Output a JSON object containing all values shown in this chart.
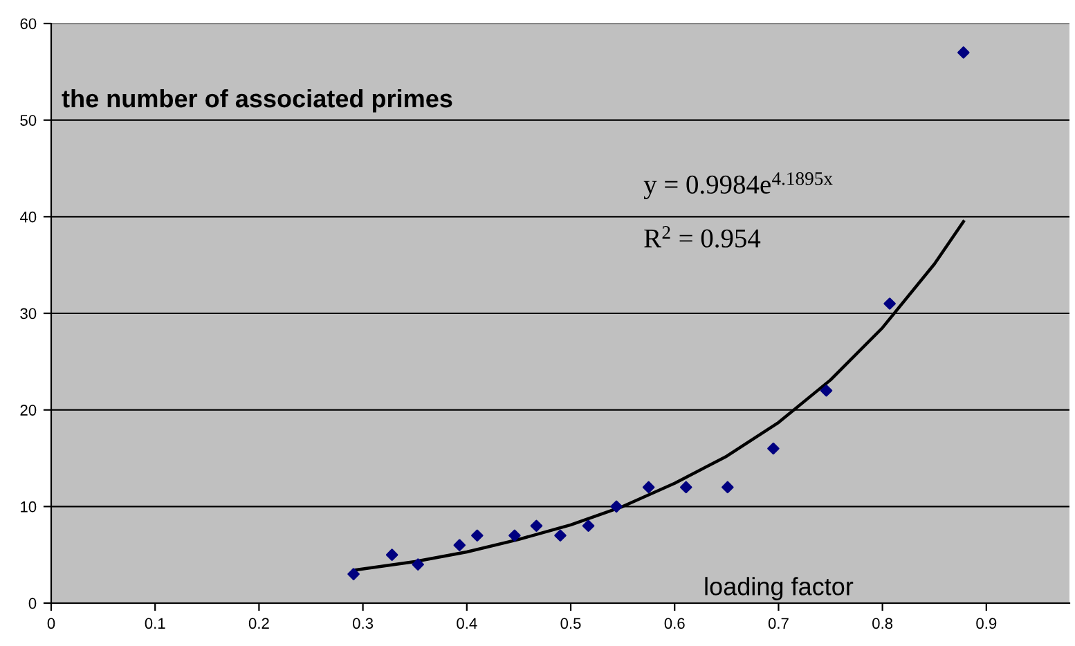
{
  "chart_data": {
    "type": "scatter",
    "xlabel": "loading factor",
    "ylabel": "the number of associated primes",
    "annotations": [
      "y = 0.9984e$^{4.1895x}$",
      "R$^{2}$ = 0.954"
    ],
    "series": [
      {
        "color": "#000080",
        "marker": "diamond",
        "x": [
          0.291,
          0.328,
          0.353,
          0.393,
          0.41,
          0.446,
          0.467,
          0.49,
          0.517,
          0.544,
          0.575,
          0.611,
          0.651,
          0.695,
          0.746,
          0.807,
          0.878
        ],
        "values": [
          3,
          5,
          4,
          6,
          7,
          7,
          8,
          7,
          8,
          10,
          12,
          12,
          12,
          16,
          22,
          31,
          57
        ]
      },
      {
        "type": "line",
        "color": "#000000",
        "marker": "none",
        "line_style": "solid",
        "x": [
          0.291,
          0.35,
          0.4,
          0.45,
          0.5,
          0.55,
          0.6,
          0.65,
          0.7,
          0.75,
          0.8,
          0.85,
          0.878
        ],
        "values": [
          3.4,
          4.3,
          5.3,
          6.6,
          8.1,
          10.0,
          12.4,
          15.2,
          18.7,
          23.1,
          28.5,
          35.1,
          39.5
        ]
      }
    ],
    "xlim": [
      0,
      0.98
    ],
    "xticks": [
      0,
      0.1,
      0.2,
      0.3,
      0.4,
      0.5,
      0.6,
      0.7,
      0.8,
      0.9
    ],
    "ylim": [
      0,
      60
    ],
    "yticks": [
      0,
      10,
      20,
      30,
      40,
      50,
      60
    ],
    "grid": "y",
    "legend": false
  }
}
